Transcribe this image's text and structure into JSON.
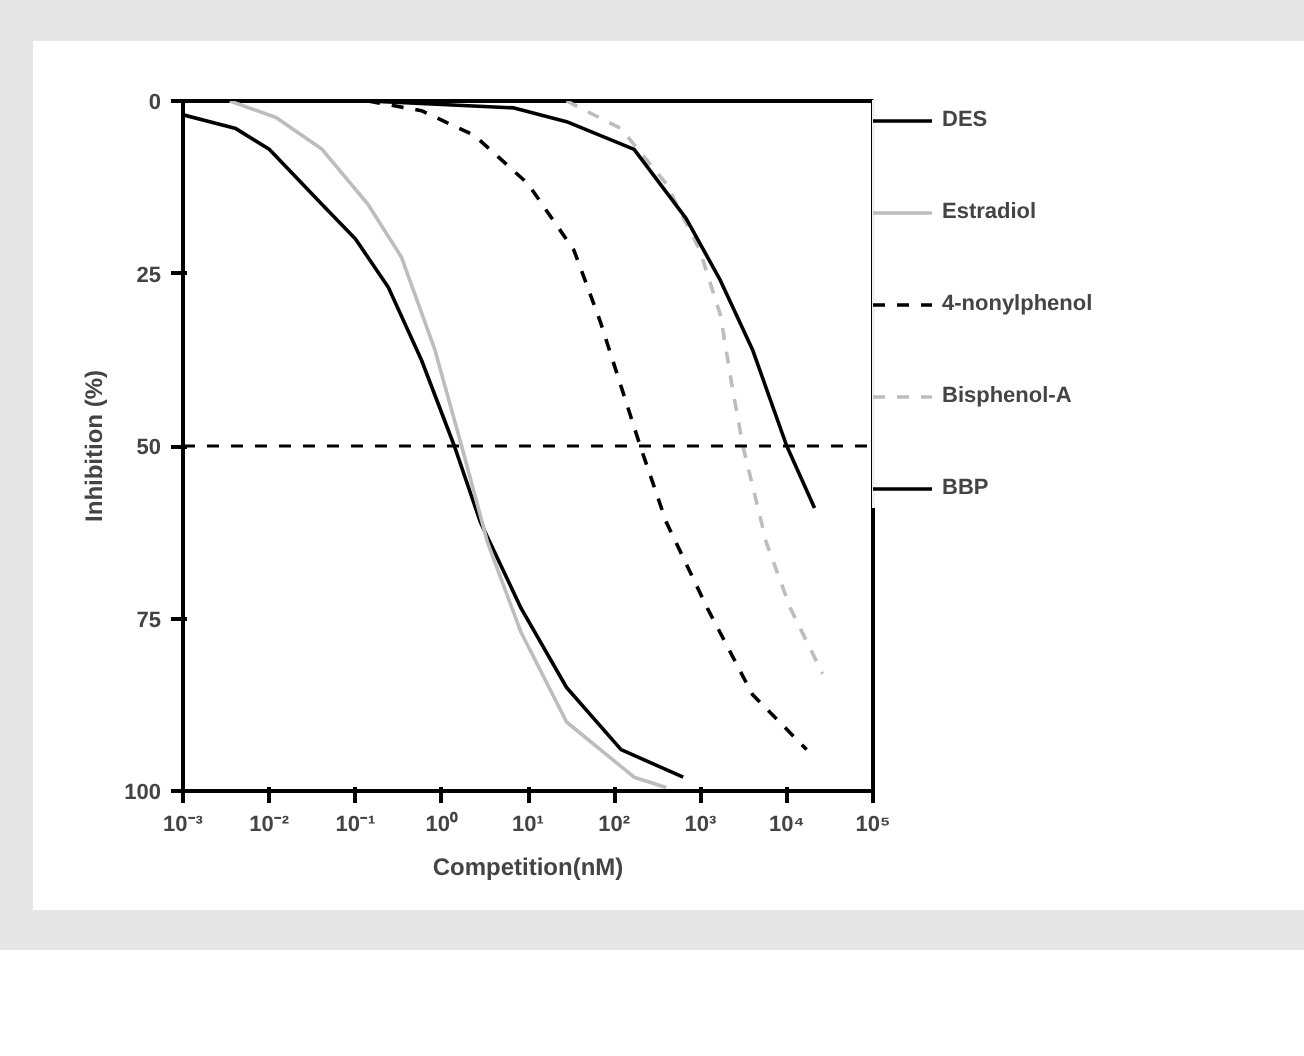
{
  "chart_data": {
    "type": "line",
    "xlabel": "Competition(nM)",
    "ylabel": "Inhibition (%)",
    "log": "x",
    "xlim": [
      0.001,
      100000
    ],
    "ylim": [
      100,
      0
    ],
    "xticks": [
      {
        "value": 0.001,
        "label": "10⁻³"
      },
      {
        "value": 0.01,
        "label": "10⁻²"
      },
      {
        "value": 0.1,
        "label": "10⁻¹"
      },
      {
        "value": 1,
        "label": "10⁰"
      },
      {
        "value": 10,
        "label": "10¹"
      },
      {
        "value": 100,
        "label": "10²"
      },
      {
        "value": 1000,
        "label": "10³"
      },
      {
        "value": 10000,
        "label": "10⁴"
      },
      {
        "value": 100000,
        "label": "10⁵"
      }
    ],
    "yticks": [
      0,
      25,
      50,
      75,
      100
    ],
    "grid": false,
    "legend": "right",
    "ref_lines": [
      {
        "axis": "y",
        "value": 50,
        "color": "#000000",
        "line_style": "dashed"
      }
    ],
    "series": [
      {
        "name": "DES",
        "color": "#000000",
        "line_style": "solid",
        "x": [
          0.001,
          0.0041,
          0.01,
          0.041,
          0.1,
          0.24,
          0.58,
          1.4,
          2.8,
          8.3,
          28,
          120,
          630
        ],
        "values": [
          2,
          4,
          7,
          15,
          20,
          27,
          37.5,
          50,
          61,
          73.5,
          85,
          94,
          98
        ]
      },
      {
        "name": "Estradiol",
        "color": "#bdbdbd",
        "line_style": "solid",
        "x": [
          0.0035,
          0.012,
          0.041,
          0.14,
          0.34,
          0.83,
          1.7,
          3.4,
          8.3,
          28,
          170,
          400
        ],
        "values": [
          0,
          2.4,
          7,
          15,
          22.6,
          36,
          50,
          64,
          77,
          90,
          98,
          99.5
        ]
      },
      {
        "name": "4-nonylphenol",
        "color": "#000000",
        "line_style": "dashed",
        "x": [
          0.14,
          0.58,
          2.4,
          10,
          34,
          69,
          200,
          400,
          1200,
          4000,
          17000
        ],
        "values": [
          0,
          1.4,
          5,
          12,
          21.6,
          32,
          50,
          61,
          73.5,
          86,
          94
        ]
      },
      {
        "name": "Bisphenol-A",
        "color": "#bdbdbd",
        "line_style": "dashed",
        "x": [
          28,
          120,
          400,
          980,
          1700,
          2300,
          3100,
          5800,
          11000,
          26000
        ],
        "values": [
          0,
          4,
          12,
          21.6,
          31,
          41,
          50,
          64,
          73.5,
          83
        ]
      },
      {
        "name": "BBP",
        "color": "#000000",
        "line_style": "solid",
        "x": [
          0.14,
          6.9,
          28,
          170,
          680,
          1700,
          4000,
          10000,
          21000
        ],
        "values": [
          0,
          1,
          3,
          7,
          17,
          26,
          36,
          50,
          59
        ]
      }
    ]
  }
}
